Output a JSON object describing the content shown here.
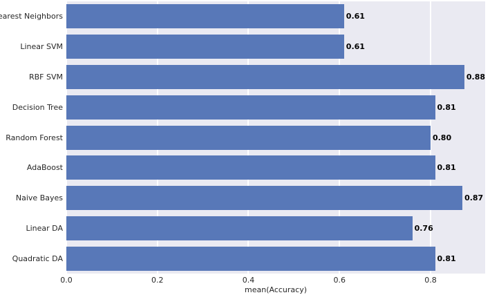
{
  "chart_data": {
    "type": "bar",
    "orientation": "horizontal",
    "title": "",
    "xlabel": "mean(Accuracy)",
    "ylabel": "",
    "categories": [
      "Nearest Neighbors",
      "Linear SVM",
      "RBF SVM",
      "Decision Tree",
      "Random Forest",
      "AdaBoost",
      "Naive Bayes",
      "Linear DA",
      "Quadratic DA"
    ],
    "values": [
      0.61,
      0.61,
      0.88,
      0.81,
      0.8,
      0.81,
      0.87,
      0.76,
      0.81
    ],
    "value_labels": [
      "0.61",
      "0.61",
      "0.88",
      "0.81",
      "0.80",
      "0.81",
      "0.87",
      "0.76",
      "0.81"
    ],
    "x_tick_labels": [
      "0.0",
      "0.2",
      "0.4",
      "0.6",
      "0.8"
    ],
    "x_tick_values": [
      0.0,
      0.2,
      0.4,
      0.6,
      0.8
    ],
    "xlim": [
      0,
      0.92
    ],
    "grid": "vertical-white-gridlines",
    "legend_position": "none",
    "colors": {
      "bar": "#5878b8",
      "plot_background": "#eaeaf2",
      "figure_background": "#ffffff",
      "gridline": "#ffffff",
      "value_label_text": "#000000",
      "tick_label_text": "#262626"
    }
  }
}
